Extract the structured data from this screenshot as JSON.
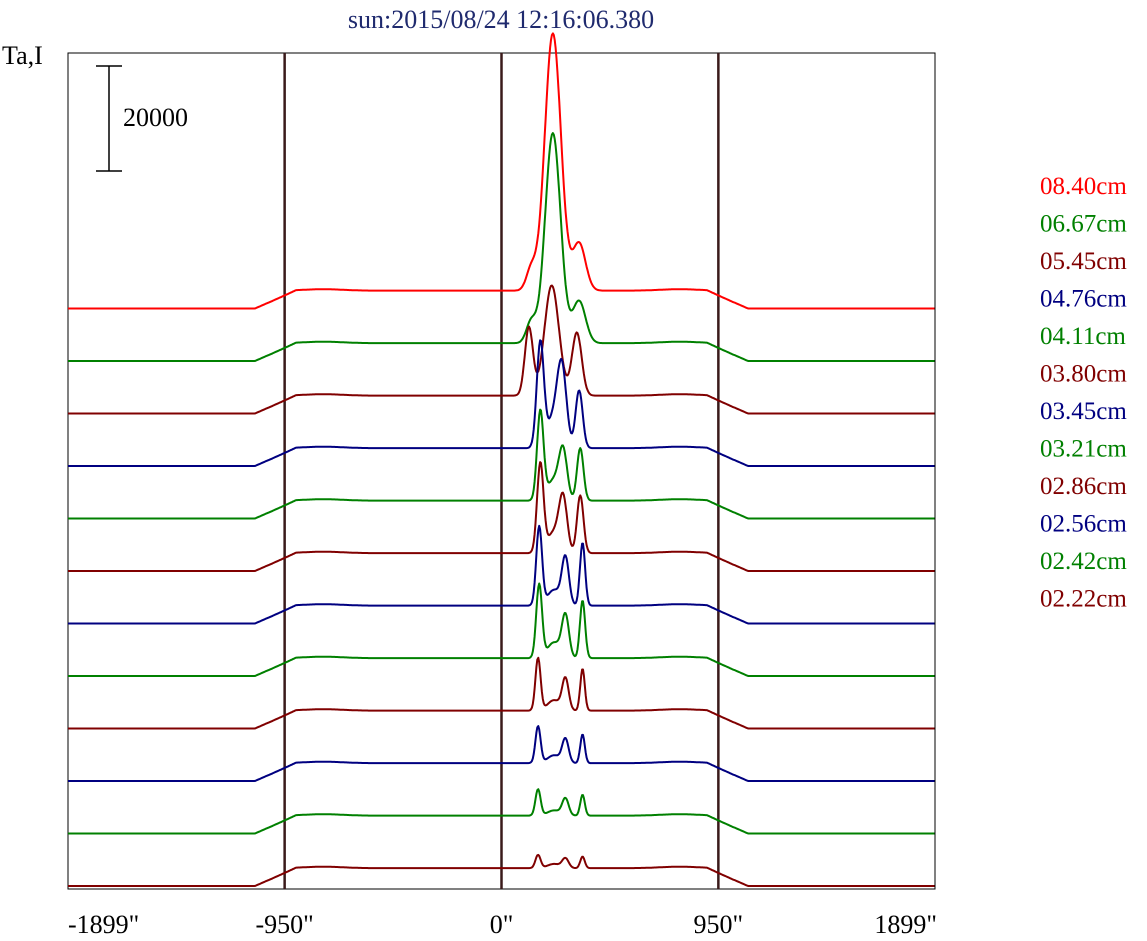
{
  "chart_data": {
    "type": "line",
    "title": "sun:2015/08/24 12:16:06.380",
    "ylabel": "Ta,I",
    "xlabel": "",
    "x_unit": "arcsec",
    "xlim": [
      -1899,
      1899
    ],
    "x_ticks": [
      {
        "value": -1899,
        "label": "-1899\""
      },
      {
        "value": -950,
        "label": "-950\""
      },
      {
        "value": 0,
        "label": "0\""
      },
      {
        "value": 950,
        "label": "950\""
      },
      {
        "value": 1899,
        "label": "1899\""
      }
    ],
    "vertical_lines": [
      -950,
      0,
      950
    ],
    "scale_bar": {
      "value": 20000,
      "label": "20000"
    },
    "offset_between_series": 10000,
    "legend_position": "right",
    "series": [
      {
        "name": "08.40cm",
        "color": "#ff0000",
        "base_offset": 110000,
        "plateau": 3400,
        "bumps": [
          {
            "x": 225,
            "amp": 49000,
            "w": 50
          },
          {
            "x": 340,
            "amp": 9000,
            "w": 40
          },
          {
            "x": 130,
            "amp": 4000,
            "w": 30
          }
        ]
      },
      {
        "name": "06.67cm",
        "color": "#008000",
        "base_offset": 100000,
        "plateau": 3400,
        "bumps": [
          {
            "x": 225,
            "amp": 40000,
            "w": 48
          },
          {
            "x": 340,
            "amp": 8000,
            "w": 40
          },
          {
            "x": 130,
            "amp": 4000,
            "w": 30
          }
        ]
      },
      {
        "name": "05.45cm",
        "color": "#800000",
        "base_offset": 90000,
        "plateau": 3400,
        "bumps": [
          {
            "x": 220,
            "amp": 21000,
            "w": 45
          },
          {
            "x": 120,
            "amp": 13000,
            "w": 25
          },
          {
            "x": 330,
            "amp": 12000,
            "w": 30
          }
        ]
      },
      {
        "name": "04.76cm",
        "color": "#000080",
        "base_offset": 80000,
        "plateau": 3400,
        "bumps": [
          {
            "x": 170,
            "amp": 20000,
            "w": 22
          },
          {
            "x": 265,
            "amp": 14000,
            "w": 28
          },
          {
            "x": 340,
            "amp": 11000,
            "w": 22
          },
          {
            "x": 230,
            "amp": 6000,
            "w": 40
          }
        ]
      },
      {
        "name": "04.11cm",
        "color": "#008000",
        "base_offset": 70000,
        "plateau": 3400,
        "bumps": [
          {
            "x": 170,
            "amp": 17000,
            "w": 20
          },
          {
            "x": 270,
            "amp": 9000,
            "w": 25
          },
          {
            "x": 345,
            "amp": 10000,
            "w": 20
          },
          {
            "x": 230,
            "amp": 4000,
            "w": 40
          }
        ]
      },
      {
        "name": "03.80cm",
        "color": "#800000",
        "base_offset": 60000,
        "plateau": 3400,
        "bumps": [
          {
            "x": 170,
            "amp": 17000,
            "w": 20
          },
          {
            "x": 270,
            "amp": 10000,
            "w": 25
          },
          {
            "x": 345,
            "amp": 11000,
            "w": 20
          },
          {
            "x": 230,
            "amp": 4000,
            "w": 40
          }
        ]
      },
      {
        "name": "03.45cm",
        "color": "#000080",
        "base_offset": 50000,
        "plateau": 3400,
        "bumps": [
          {
            "x": 165,
            "amp": 15000,
            "w": 18
          },
          {
            "x": 280,
            "amp": 9000,
            "w": 22
          },
          {
            "x": 355,
            "amp": 12000,
            "w": 16
          },
          {
            "x": 230,
            "amp": 3000,
            "w": 40
          }
        ]
      },
      {
        "name": "03.21cm",
        "color": "#008000",
        "base_offset": 40000,
        "plateau": 3400,
        "bumps": [
          {
            "x": 165,
            "amp": 14000,
            "w": 18
          },
          {
            "x": 280,
            "amp": 8000,
            "w": 22
          },
          {
            "x": 355,
            "amp": 11000,
            "w": 16
          },
          {
            "x": 230,
            "amp": 3000,
            "w": 40
          }
        ]
      },
      {
        "name": "02.86cm",
        "color": "#800000",
        "base_offset": 30000,
        "plateau": 3400,
        "bumps": [
          {
            "x": 160,
            "amp": 10000,
            "w": 16
          },
          {
            "x": 280,
            "amp": 6000,
            "w": 20
          },
          {
            "x": 355,
            "amp": 8000,
            "w": 14
          },
          {
            "x": 230,
            "amp": 2000,
            "w": 40
          }
        ]
      },
      {
        "name": "02.56cm",
        "color": "#000080",
        "base_offset": 20000,
        "plateau": 3400,
        "bumps": [
          {
            "x": 160,
            "amp": 7000,
            "w": 16
          },
          {
            "x": 280,
            "amp": 4500,
            "w": 20
          },
          {
            "x": 355,
            "amp": 5500,
            "w": 14
          },
          {
            "x": 230,
            "amp": 1500,
            "w": 40
          }
        ]
      },
      {
        "name": "02.42cm",
        "color": "#008000",
        "base_offset": 10000,
        "plateau": 3400,
        "bumps": [
          {
            "x": 160,
            "amp": 5000,
            "w": 16
          },
          {
            "x": 280,
            "amp": 3200,
            "w": 20
          },
          {
            "x": 355,
            "amp": 4000,
            "w": 14
          },
          {
            "x": 230,
            "amp": 1000,
            "w": 40
          }
        ]
      },
      {
        "name": "02.22cm",
        "color": "#800000",
        "base_offset": 0,
        "plateau": 3400,
        "bumps": [
          {
            "x": 160,
            "amp": 2500,
            "w": 16
          },
          {
            "x": 280,
            "amp": 1800,
            "w": 20
          },
          {
            "x": 355,
            "amp": 2200,
            "w": 14
          },
          {
            "x": 230,
            "amp": 800,
            "w": 40
          }
        ]
      }
    ]
  }
}
